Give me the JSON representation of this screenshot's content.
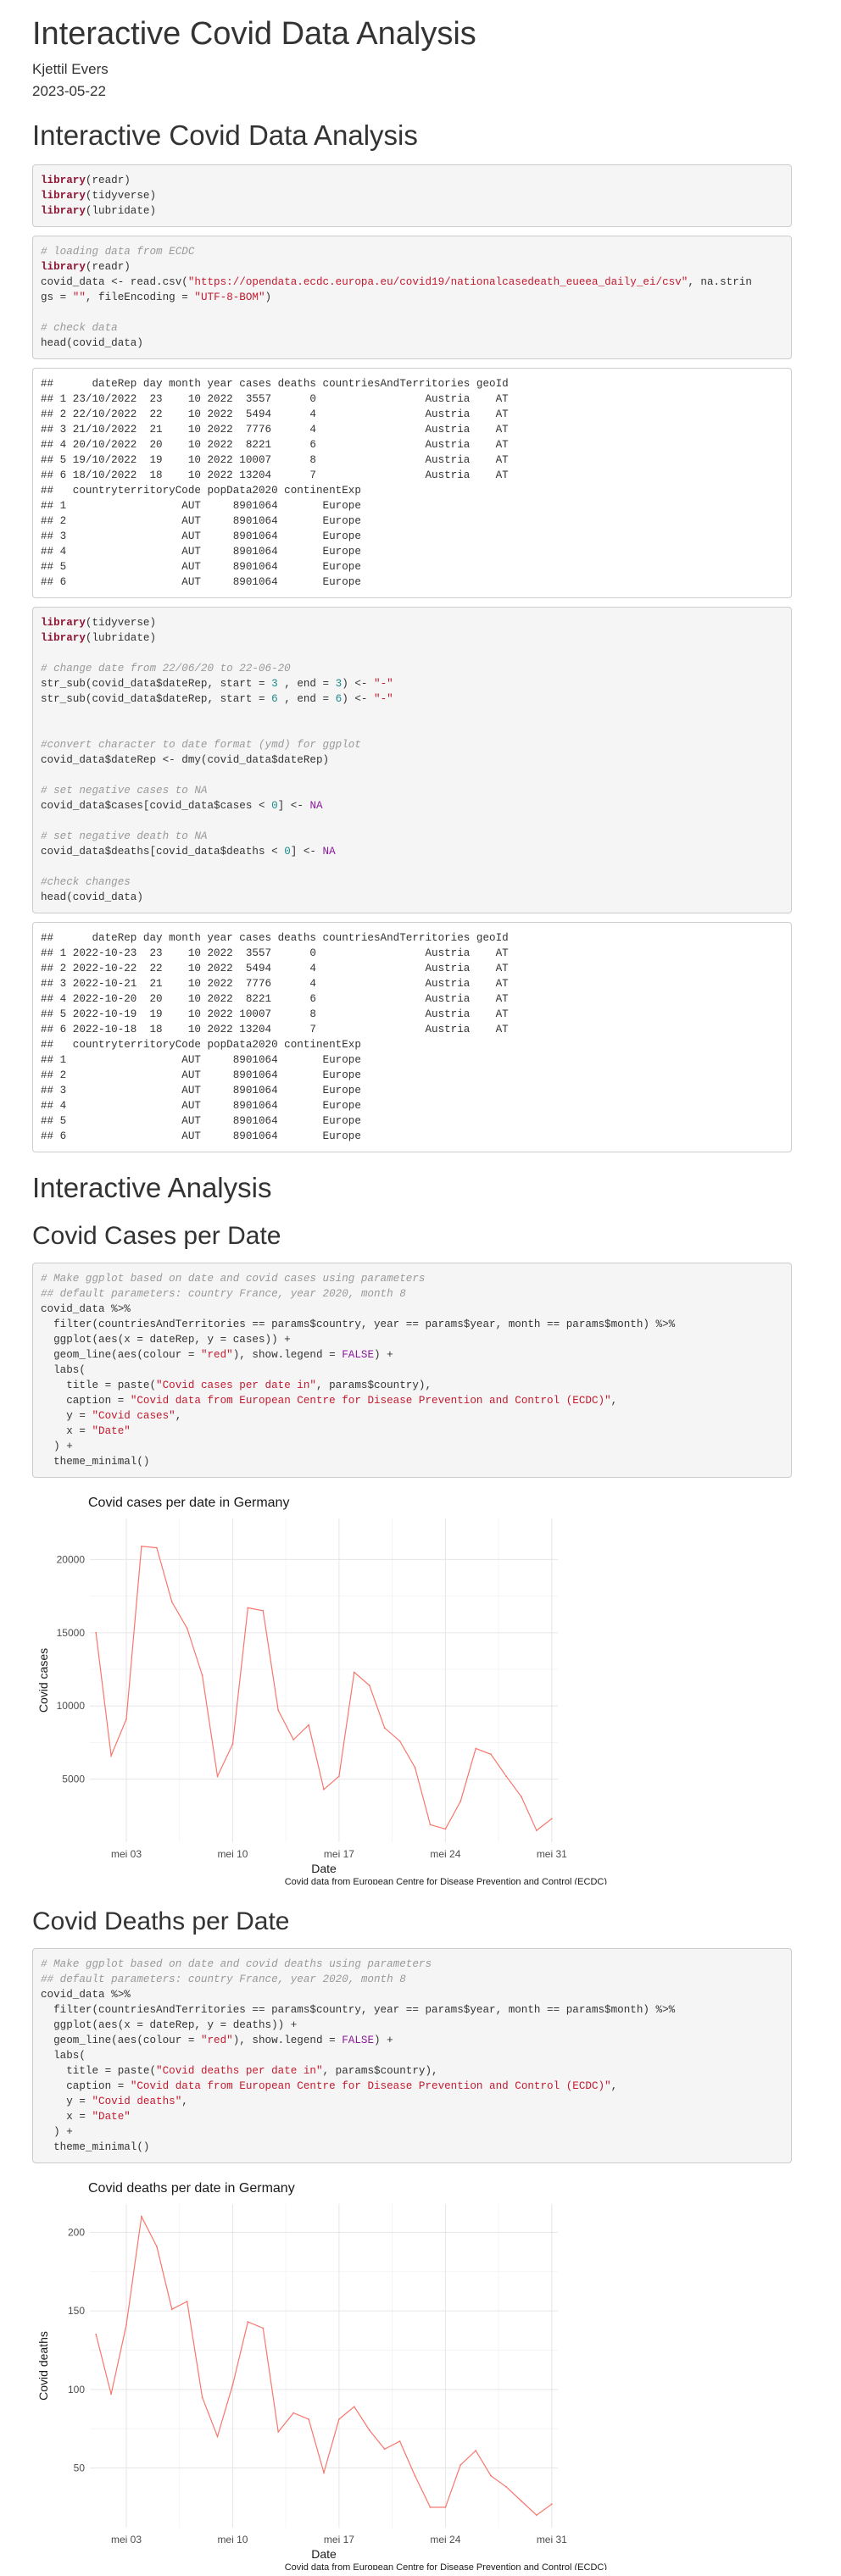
{
  "title": "Interactive Covid Data Analysis",
  "author": "Kjettil Evers",
  "date": "2023-05-22",
  "heading1": "Interactive Covid Data Analysis",
  "code1": [
    [
      [
        "kw",
        "library"
      ],
      [
        "t",
        "(readr)"
      ]
    ],
    [
      [
        "kw",
        "library"
      ],
      [
        "t",
        "(tidyverse)"
      ]
    ],
    [
      [
        "kw",
        "library"
      ],
      [
        "t",
        "(lubridate)"
      ]
    ]
  ],
  "code2": [
    [
      [
        "cm",
        "# loading data from ECDC"
      ]
    ],
    [
      [
        "kw",
        "library"
      ],
      [
        "t",
        "(readr)"
      ]
    ],
    [
      [
        "t",
        "covid_data <- read.csv("
      ],
      [
        "str",
        "\"https://opendata.ecdc.europa.eu/covid19/nationalcasedeath_eueea_daily_ei/csv\""
      ],
      [
        "t",
        ", na.strin"
      ]
    ],
    [
      [
        "t",
        "gs = "
      ],
      [
        "str",
        "\"\""
      ],
      [
        "t",
        ", fileEncoding = "
      ],
      [
        "str",
        "\"UTF-8-BOM\""
      ],
      [
        "t",
        ")"
      ]
    ],
    [],
    [
      [
        "cm",
        "# check data"
      ]
    ],
    [
      [
        "t",
        "head(covid_data)"
      ]
    ]
  ],
  "output1": [
    "##      dateRep day month year cases deaths countriesAndTerritories geoId",
    "## 1 23/10/2022  23    10 2022  3557      0                 Austria    AT",
    "## 2 22/10/2022  22    10 2022  5494      4                 Austria    AT",
    "## 3 21/10/2022  21    10 2022  7776      4                 Austria    AT",
    "## 4 20/10/2022  20    10 2022  8221      6                 Austria    AT",
    "## 5 19/10/2022  19    10 2022 10007      8                 Austria    AT",
    "## 6 18/10/2022  18    10 2022 13204      7                 Austria    AT",
    "##   countryterritoryCode popData2020 continentExp",
    "## 1                  AUT     8901064       Europe",
    "## 2                  AUT     8901064       Europe",
    "## 3                  AUT     8901064       Europe",
    "## 4                  AUT     8901064       Europe",
    "## 5                  AUT     8901064       Europe",
    "## 6                  AUT     8901064       Europe"
  ],
  "code3": [
    [
      [
        "kw",
        "library"
      ],
      [
        "t",
        "(tidyverse)"
      ]
    ],
    [
      [
        "kw",
        "library"
      ],
      [
        "t",
        "(lubridate)"
      ]
    ],
    [],
    [
      [
        "cm",
        "# change date from 22/06/20 to 22-06-20"
      ]
    ],
    [
      [
        "t",
        "str_sub(covid_data$dateRep, start = "
      ],
      [
        "num",
        "3"
      ],
      [
        "t",
        " , end = "
      ],
      [
        "num",
        "3"
      ],
      [
        "t",
        ") <- "
      ],
      [
        "str",
        "\"-\""
      ]
    ],
    [
      [
        "t",
        "str_sub(covid_data$dateRep, start = "
      ],
      [
        "num",
        "6"
      ],
      [
        "t",
        " , end = "
      ],
      [
        "num",
        "6"
      ],
      [
        "t",
        ") <- "
      ],
      [
        "str",
        "\"-\""
      ]
    ],
    [],
    [],
    [
      [
        "cm",
        "#convert character to date format (ymd) for ggplot"
      ]
    ],
    [
      [
        "t",
        "covid_data$dateRep <- dmy(covid_data$dateRep)"
      ]
    ],
    [],
    [
      [
        "cm",
        "# set negative cases to NA"
      ]
    ],
    [
      [
        "t",
        "covid_data$cases[covid_data$cases < "
      ],
      [
        "num",
        "0"
      ],
      [
        "t",
        "] <- "
      ],
      [
        "na",
        "NA"
      ]
    ],
    [],
    [
      [
        "cm",
        "# set negative death to NA"
      ]
    ],
    [
      [
        "t",
        "covid_data$deaths[covid_data$deaths < "
      ],
      [
        "num",
        "0"
      ],
      [
        "t",
        "] <- "
      ],
      [
        "na",
        "NA"
      ]
    ],
    [],
    [
      [
        "cm",
        "#check changes"
      ]
    ],
    [
      [
        "t",
        "head(covid_data)"
      ]
    ]
  ],
  "output2": [
    "##      dateRep day month year cases deaths countriesAndTerritories geoId",
    "## 1 2022-10-23  23    10 2022  3557      0                 Austria    AT",
    "## 2 2022-10-22  22    10 2022  5494      4                 Austria    AT",
    "## 3 2022-10-21  21    10 2022  7776      4                 Austria    AT",
    "## 4 2022-10-20  20    10 2022  8221      6                 Austria    AT",
    "## 5 2022-10-19  19    10 2022 10007      8                 Austria    AT",
    "## 6 2022-10-18  18    10 2022 13204      7                 Austria    AT",
    "##   countryterritoryCode popData2020 continentExp",
    "## 1                  AUT     8901064       Europe",
    "## 2                  AUT     8901064       Europe",
    "## 3                  AUT     8901064       Europe",
    "## 4                  AUT     8901064       Europe",
    "## 5                  AUT     8901064       Europe",
    "## 6                  AUT     8901064       Europe"
  ],
  "heading2": "Interactive Analysis",
  "heading3": "Covid Cases per Date",
  "code4": [
    [
      [
        "cm",
        "# Make ggplot based on date and covid cases using parameters"
      ]
    ],
    [
      [
        "cm",
        "## default parameters: country France, year 2020, month 8"
      ]
    ],
    [
      [
        "t",
        "covid_data %>%"
      ]
    ],
    [
      [
        "t",
        "  filter(countriesAndTerritories == params$country, year == params$year, month == params$month) %>%"
      ]
    ],
    [
      [
        "t",
        "  ggplot(aes(x = dateRep, y = cases)) +"
      ]
    ],
    [
      [
        "t",
        "  geom_line(aes(colour = "
      ],
      [
        "str",
        "\"red\""
      ],
      [
        "t",
        "), show.legend = "
      ],
      [
        "bool",
        "FALSE"
      ],
      [
        "t",
        ") +"
      ]
    ],
    [
      [
        "t",
        "  labs("
      ]
    ],
    [
      [
        "t",
        "    title = paste("
      ],
      [
        "str",
        "\"Covid cases per date in\""
      ],
      [
        "t",
        ", params$country),"
      ]
    ],
    [
      [
        "t",
        "    caption = "
      ],
      [
        "str",
        "\"Covid data from European Centre for Disease Prevention and Control (ECDC)\""
      ],
      [
        "t",
        ","
      ]
    ],
    [
      [
        "t",
        "    y = "
      ],
      [
        "str",
        "\"Covid cases\""
      ],
      [
        "t",
        ","
      ]
    ],
    [
      [
        "t",
        "    x = "
      ],
      [
        "str",
        "\"Date\""
      ]
    ],
    [
      [
        "t",
        "  ) +"
      ]
    ],
    [
      [
        "t",
        "  theme_minimal()"
      ]
    ]
  ],
  "heading4": "Covid Deaths per Date",
  "code5": [
    [
      [
        "cm",
        "# Make ggplot based on date and covid deaths using parameters"
      ]
    ],
    [
      [
        "cm",
        "## default parameters: country France, year 2020, month 8"
      ]
    ],
    [
      [
        "t",
        "covid_data %>%"
      ]
    ],
    [
      [
        "t",
        "  filter(countriesAndTerritories == params$country, year == params$year, month == params$month) %>%"
      ]
    ],
    [
      [
        "t",
        "  ggplot(aes(x = dateRep, y = deaths)) +"
      ]
    ],
    [
      [
        "t",
        "  geom_line(aes(colour = "
      ],
      [
        "str",
        "\"red\""
      ],
      [
        "t",
        "), show.legend = "
      ],
      [
        "bool",
        "FALSE"
      ],
      [
        "t",
        ") +"
      ]
    ],
    [
      [
        "t",
        "  labs("
      ]
    ],
    [
      [
        "t",
        "    title = paste("
      ],
      [
        "str",
        "\"Covid deaths per date in\""
      ],
      [
        "t",
        ", params$country),"
      ]
    ],
    [
      [
        "t",
        "    caption = "
      ],
      [
        "str",
        "\"Covid data from European Centre for Disease Prevention and Control (ECDC)\""
      ],
      [
        "t",
        ","
      ]
    ],
    [
      [
        "t",
        "    y = "
      ],
      [
        "str",
        "\"Covid deaths\""
      ],
      [
        "t",
        ","
      ]
    ],
    [
      [
        "t",
        "    x = "
      ],
      [
        "str",
        "\"Date\""
      ]
    ],
    [
      [
        "t",
        "  ) +"
      ]
    ],
    [
      [
        "t",
        "  theme_minimal()"
      ]
    ]
  ],
  "line_color": "#f8766d",
  "chart_data": [
    {
      "type": "line",
      "title": "Covid cases per date in Germany",
      "xlabel": "Date",
      "ylabel": "Covid cases",
      "caption": "Covid data from European Centre for Disease Prevention and Control (ECDC)",
      "x": [
        1,
        2,
        3,
        4,
        5,
        6,
        7,
        8,
        9,
        10,
        11,
        12,
        13,
        14,
        15,
        16,
        17,
        18,
        19,
        20,
        21,
        22,
        23,
        24,
        25,
        26,
        27,
        28,
        29,
        30,
        31
      ],
      "values": [
        15000,
        6600,
        9100,
        20900,
        20800,
        17100,
        15300,
        12100,
        5200,
        7400,
        16700,
        16500,
        9700,
        7700,
        8700,
        4300,
        5200,
        12300,
        11400,
        8500,
        7600,
        5800,
        1900,
        1600,
        3500,
        7100,
        6700,
        5200,
        3800,
        1500,
        2300
      ],
      "xticks": [
        {
          "day": 3,
          "label": "mei 03"
        },
        {
          "day": 10,
          "label": "mei 10"
        },
        {
          "day": 17,
          "label": "mei 17"
        },
        {
          "day": 24,
          "label": "mei 24"
        },
        {
          "day": 31,
          "label": "mei 31"
        }
      ],
      "yticks": [
        5000,
        10000,
        15000,
        20000
      ],
      "ylim": [
        700,
        22800
      ],
      "grid": true
    },
    {
      "type": "line",
      "title": "Covid deaths per date in Germany",
      "xlabel": "Date",
      "ylabel": "Covid deaths",
      "caption": "Covid data from European Centre for Disease Prevention and Control (ECDC)",
      "x": [
        1,
        2,
        3,
        4,
        5,
        6,
        7,
        8,
        9,
        10,
        11,
        12,
        13,
        14,
        15,
        16,
        17,
        18,
        19,
        20,
        21,
        22,
        23,
        24,
        25,
        26,
        27,
        28,
        29,
        30,
        31
      ],
      "values": [
        135,
        97,
        141,
        210,
        191,
        151,
        156,
        95,
        70,
        103,
        143,
        139,
        73,
        85,
        81,
        47,
        81,
        89,
        74,
        62,
        67,
        45,
        25,
        25,
        52,
        61,
        45,
        38,
        29,
        20,
        27
      ],
      "xticks": [
        {
          "day": 3,
          "label": "mei 03"
        },
        {
          "day": 10,
          "label": "mei 10"
        },
        {
          "day": 17,
          "label": "mei 17"
        },
        {
          "day": 24,
          "label": "mei 24"
        },
        {
          "day": 31,
          "label": "mei 31"
        }
      ],
      "yticks": [
        50,
        100,
        150,
        200
      ],
      "ylim": [
        12,
        218
      ],
      "grid": true
    }
  ]
}
